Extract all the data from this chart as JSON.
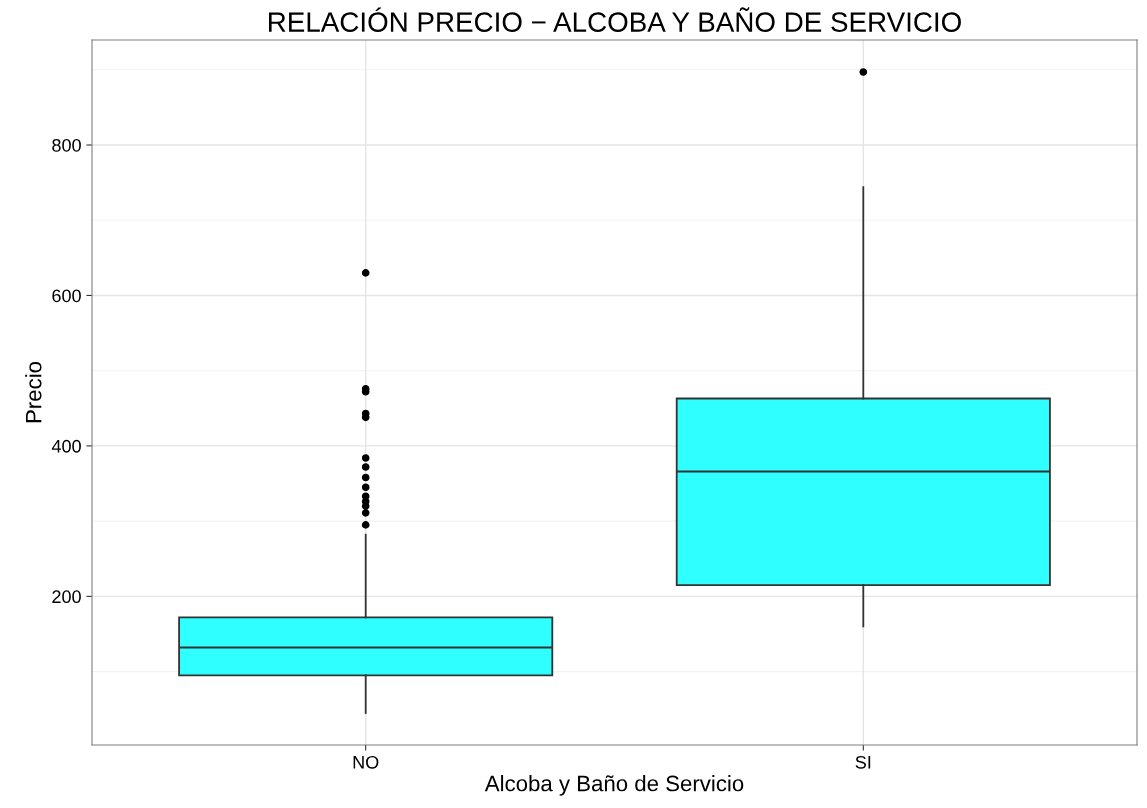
{
  "chart_data": {
    "type": "box",
    "title": "RELACIÓN PRECIO − ALCOBA Y BAÑO DE SERVICIO",
    "xlabel": "Alcoba y Baño de Servicio",
    "ylabel": "Precio",
    "categories": [
      "NO",
      "SI"
    ],
    "series": [
      {
        "color": "#30ffff",
        "boxes": [
          {
            "low": 45,
            "q1": 95,
            "median": 132,
            "q3": 172,
            "high": 282,
            "outliers": [
              630,
              476,
              472,
              443,
              438,
              384,
              372,
              358,
              345,
              333,
              326,
              320,
              311,
              295
            ]
          },
          {
            "low": 160,
            "q1": 215,
            "median": 366,
            "q3": 463,
            "high": 744,
            "outliers": [
              897
            ]
          }
        ]
      }
    ],
    "ylim": [
      2.4,
      939.6
    ],
    "yticks": [
      200,
      400,
      600,
      800
    ],
    "grid": true
  }
}
